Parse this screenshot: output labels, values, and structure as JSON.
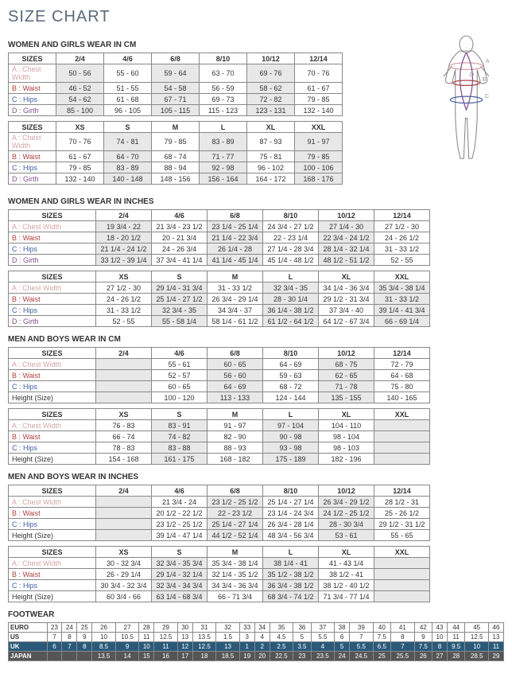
{
  "title": "SIZE CHART",
  "sections": {
    "wg_cm": {
      "heading": "WOMEN AND GIRLS WEAR IN CM",
      "t1": {
        "headers": [
          "SIZES",
          "2/4",
          "4/6",
          "6/8",
          "8/10",
          "10/12",
          "12/14"
        ],
        "rows": [
          {
            "label": "A : Chest Width",
            "cls": "a",
            "v": [
              "50 - 56",
              "55 - 60",
              "59 - 64",
              "63 - 70",
              "69 - 76",
              "70 - 76"
            ],
            "hi": [
              0,
              2,
              4
            ]
          },
          {
            "label": "B : Waist",
            "cls": "b",
            "v": [
              "46 - 52",
              "51 - 55",
              "54 - 58",
              "56 - 59",
              "58 - 62",
              "61 - 67"
            ],
            "hi": [
              0,
              2,
              4
            ]
          },
          {
            "label": "C : Hips",
            "cls": "c",
            "v": [
              "54 - 62",
              "61 - 68",
              "67 - 71",
              "69 - 73",
              "72 - 82",
              "79 - 85"
            ],
            "hi": [
              0,
              2,
              4
            ]
          },
          {
            "label": "D : Girth",
            "cls": "d",
            "v": [
              "85 - 100",
              "96 - 105",
              "105 - 115",
              "115 - 123",
              "123 - 131",
              "132 - 140"
            ],
            "hi": [
              0,
              2,
              4
            ]
          }
        ]
      },
      "t2": {
        "headers": [
          "SIZES",
          "XS",
          "S",
          "M",
          "L",
          "XL",
          "XXL"
        ],
        "rows": [
          {
            "label": "A : Chest Width",
            "cls": "a",
            "v": [
              "70 - 76",
              "74 - 81",
              "79 - 85",
              "83 - 89",
              "87 - 93",
              "91 - 97"
            ],
            "hi": [
              1,
              3,
              5
            ]
          },
          {
            "label": "B : Waist",
            "cls": "b",
            "v": [
              "61 - 67",
              "64 - 70",
              "68 - 74",
              "71 - 77",
              "75 - 81",
              "79 - 85"
            ],
            "hi": [
              1,
              3,
              5
            ]
          },
          {
            "label": "C : Hips",
            "cls": "c",
            "v": [
              "79 - 85",
              "83 - 89",
              "88 - 94",
              "92 - 98",
              "96 - 102",
              "100 - 106"
            ],
            "hi": [
              1,
              3,
              5
            ]
          },
          {
            "label": "D : Girth",
            "cls": "d",
            "v": [
              "132 - 140",
              "140 - 148",
              "148 - 156",
              "156 - 164",
              "164 - 172",
              "168 - 176"
            ],
            "hi": [
              1,
              3,
              5
            ]
          }
        ]
      }
    },
    "wg_in": {
      "heading": "WOMEN AND GIRLS WEAR IN INCHES",
      "t1": {
        "headers": [
          "SIZES",
          "2/4",
          "4/6",
          "6/8",
          "8/10",
          "10/12",
          "12/14"
        ],
        "rows": [
          {
            "label": "A : Chest Width",
            "cls": "a",
            "v": [
              "19 3/4 - 22",
              "21 3/4 - 23 1/2",
              "23 1/4 - 25 1/4",
              "24 3/4 - 27 1/2",
              "27 1/4 - 30",
              "27 1/2 - 30"
            ],
            "hi": [
              0,
              2,
              4
            ]
          },
          {
            "label": "B : Waist",
            "cls": "b",
            "v": [
              "18 - 20 1/2",
              "20 - 21 3/4",
              "21 1/4 - 22 3/4",
              "22 - 23 1/4",
              "22 3/4 - 24 1/2",
              "24 - 26 1/2"
            ],
            "hi": [
              0,
              2,
              4
            ]
          },
          {
            "label": "C : Hips",
            "cls": "c",
            "v": [
              "21 1/4 - 24 1/2",
              "24 - 26 3/4",
              "26 1/4 - 28",
              "27 1/4 - 28 3/4",
              "28 1/4 - 32 1/4",
              "31 - 33 1/2"
            ],
            "hi": [
              0,
              2,
              4
            ]
          },
          {
            "label": "D : Girth",
            "cls": "d",
            "v": [
              "33 1/2 - 39 1/4",
              "37 3/4 - 41 1/4",
              "41 1/4 - 45 1/4",
              "45 1/4 - 48 1/2",
              "48 1/2 - 51 1/2",
              "52 - 55"
            ],
            "hi": [
              0,
              2,
              4
            ]
          }
        ]
      },
      "t2": {
        "headers": [
          "SIZES",
          "XS",
          "S",
          "M",
          "L",
          "XL",
          "XXL"
        ],
        "rows": [
          {
            "label": "A : Chest Width",
            "cls": "a",
            "v": [
              "27 1/2 - 30",
              "29 1/4 - 31 3/4",
              "31 - 33 1/2",
              "32 3/4 - 35",
              "34 1/4 - 36 3/4",
              "35 3/4 - 38 1/4"
            ],
            "hi": [
              1,
              3,
              5
            ]
          },
          {
            "label": "B : Waist",
            "cls": "b",
            "v": [
              "24 - 26 1/2",
              "25 1/4 - 27 1/2",
              "26 3/4 - 29 1/4",
              "28 - 30 1/4",
              "29 1/2 - 31 3/4",
              "31 - 33 1/2"
            ],
            "hi": [
              1,
              3,
              5
            ]
          },
          {
            "label": "C : Hips",
            "cls": "c",
            "v": [
              "31 - 33 1/2",
              "32 3/4 - 35",
              "34 3/4 - 37",
              "36 1/4 - 38 1/2",
              "37 3/4 - 40",
              "39 1/4 - 41 3/4"
            ],
            "hi": [
              1,
              3,
              5
            ]
          },
          {
            "label": "D : Girth",
            "cls": "d",
            "v": [
              "52 - 55",
              "55 - 58 1/4",
              "58 1/4 - 61 1/2",
              "61 1/2 - 64 1/2",
              "64 1/2 - 67 3/4",
              "66 - 69 1/4"
            ],
            "hi": [
              1,
              3,
              5
            ]
          }
        ]
      }
    },
    "mb_cm": {
      "heading": "MEN AND BOYS WEAR IN CM",
      "t1": {
        "headers": [
          "SIZES",
          "2/4",
          "4/6",
          "6/8",
          "8/10",
          "10/12",
          "12/14"
        ],
        "rows": [
          {
            "label": "A : Chest Width",
            "cls": "a",
            "v": [
              "",
              "55 - 61",
              "60 - 65",
              "64 - 69",
              "68 - 75",
              "72 - 79"
            ],
            "hi": [
              0,
              2,
              4
            ]
          },
          {
            "label": "B : Waist",
            "cls": "b",
            "v": [
              "",
              "52 - 57",
              "56 - 60",
              "59 - 63",
              "62 - 65",
              "64 - 68"
            ],
            "hi": [
              0,
              2,
              4
            ]
          },
          {
            "label": "C : Hips",
            "cls": "c",
            "v": [
              "",
              "60 - 65",
              "64 - 69",
              "68 - 72",
              "71 - 78",
              "75 - 80"
            ],
            "hi": [
              0,
              2,
              4
            ]
          },
          {
            "label": "Height (Size)",
            "cls": "",
            "v": [
              "",
              "100 - 120",
              "113 - 133",
              "124 - 144",
              "135 - 155",
              "140 - 165"
            ],
            "hi": [
              0,
              2,
              4
            ]
          }
        ]
      },
      "t2": {
        "headers": [
          "SIZES",
          "XS",
          "S",
          "M",
          "L",
          "XL",
          "XXL"
        ],
        "rows": [
          {
            "label": "A : Chest Width",
            "cls": "a",
            "v": [
              "76 - 83",
              "83 - 91",
              "91 - 97",
              "97 - 104",
              "104 - 110",
              ""
            ],
            "hi": [
              1,
              3,
              5
            ]
          },
          {
            "label": "B : Waist",
            "cls": "b",
            "v": [
              "66 - 74",
              "74 - 82",
              "82 - 90",
              "90 - 98",
              "98 - 104",
              ""
            ],
            "hi": [
              1,
              3,
              5
            ]
          },
          {
            "label": "C : Hips",
            "cls": "c",
            "v": [
              "78 - 83",
              "83 - 88",
              "88 - 93",
              "93 - 98",
              "98 - 103",
              ""
            ],
            "hi": [
              1,
              3,
              5
            ]
          },
          {
            "label": "Height (Size)",
            "cls": "",
            "v": [
              "154 - 168",
              "161 - 175",
              "168 - 182",
              "175 - 189",
              "182 - 196",
              ""
            ],
            "hi": [
              1,
              3,
              5
            ]
          }
        ]
      }
    },
    "mb_in": {
      "heading": "MEN AND BOYS WEAR IN INCHES",
      "t1": {
        "headers": [
          "SIZES",
          "2/4",
          "4/6",
          "6/8",
          "8/10",
          "10/12",
          "12/14"
        ],
        "rows": [
          {
            "label": "A : Chest Width",
            "cls": "a",
            "v": [
              "",
              "21 3/4 - 24",
              "23 1/2 - 25 1/2",
              "25 1/4 - 27 1/4",
              "26 3/4 - 29 1/2",
              "28 1/2 - 31"
            ],
            "hi": [
              0,
              2,
              4
            ]
          },
          {
            "label": "B : Waist",
            "cls": "b",
            "v": [
              "",
              "20 1/2 - 22 1/2",
              "22 - 23 1/2",
              "23 1/4 - 24 3/4",
              "24 1/2 - 25 1/2",
              "25 - 26 1/2"
            ],
            "hi": [
              0,
              2,
              4
            ]
          },
          {
            "label": "C : Hips",
            "cls": "c",
            "v": [
              "",
              "23 1/2 - 25 1/2",
              "25 1/4 - 27 1/4",
              "26 3/4 - 28 1/4",
              "28 - 30 3/4",
              "29 1/2 - 31 1/2"
            ],
            "hi": [
              0,
              2,
              4
            ]
          },
          {
            "label": "Height (Size)",
            "cls": "",
            "v": [
              "",
              "39 1/4 - 47 1/4",
              "44 1/2 - 52 1/4",
              "48 3/4 - 56 3/4",
              "53 - 61",
              "55 - 65"
            ],
            "hi": [
              0,
              2,
              4
            ]
          }
        ]
      },
      "t2": {
        "headers": [
          "SIZES",
          "XS",
          "S",
          "M",
          "L",
          "XL",
          "XXL"
        ],
        "rows": [
          {
            "label": "A : Chest Width",
            "cls": "a",
            "v": [
              "30 - 32 3/4",
              "32 3/4 - 35 3/4",
              "35 3/4 - 38 1/4",
              "38 1/4 - 41",
              "41 - 43 1/4",
              ""
            ],
            "hi": [
              1,
              3,
              5
            ]
          },
          {
            "label": "B : Waist",
            "cls": "b",
            "v": [
              "26 - 29 1/4",
              "29 1/4 - 32 1/4",
              "32 1/4 - 35 1/2",
              "35 1/2 - 38 1/2",
              "38 1/2 - 41",
              ""
            ],
            "hi": [
              1,
              3,
              5
            ]
          },
          {
            "label": "C : Hips",
            "cls": "c",
            "v": [
              "30 3/4 - 32 3/4",
              "32 3/4 - 34 3/4",
              "34 3/4 - 36 3/4",
              "36 3/4 - 38 1/2",
              "38 1/2 - 40 1/2",
              ""
            ],
            "hi": [
              1,
              3,
              5
            ]
          },
          {
            "label": "Height (Size)",
            "cls": "",
            "v": [
              "60 3/4 - 66",
              "63 1/4 - 68 3/4",
              "66 - 71 3/4",
              "68 3/4 - 74 1/2",
              "71 3/4 - 77 1/4",
              ""
            ],
            "hi": [
              1,
              3,
              5
            ]
          }
        ]
      }
    }
  },
  "footwear": {
    "heading": "FOOTWEAR",
    "rows": [
      {
        "label": "EURO",
        "cls": "euro",
        "v": [
          "23",
          "24",
          "25",
          "26",
          "27",
          "28",
          "29",
          "30",
          "31",
          "32",
          "33",
          "34",
          "35",
          "36",
          "37",
          "38",
          "39",
          "40",
          "41",
          "42",
          "43",
          "44",
          "45",
          "46"
        ]
      },
      {
        "label": "US",
        "cls": "us",
        "v": [
          "7",
          "8",
          "9",
          "10",
          "10.5",
          "11",
          "12.5",
          "13",
          "13.5",
          "1.5",
          "3",
          "4",
          "4.5",
          "5",
          "5.5",
          "6",
          "7",
          "7.5",
          "8",
          "9",
          "10",
          "11",
          "12.5",
          "13"
        ]
      },
      {
        "label": "UK",
        "cls": "uk",
        "v": [
          "6",
          "7",
          "8",
          "8.5",
          "9",
          "10",
          "11",
          "12",
          "12.5",
          "13",
          "1",
          "2",
          "2.5",
          "3.5",
          "4",
          "5",
          "5.5",
          "6.5",
          "7",
          "7.5",
          "8",
          "9.5",
          "10",
          "11"
        ]
      },
      {
        "label": "JAPAN",
        "cls": "jp",
        "v": [
          "",
          "",
          "",
          "13.5",
          "14",
          "15",
          "16",
          "17",
          "18",
          "18.5",
          "19",
          "20",
          "22.5",
          "23",
          "23.5",
          "24",
          "24.5",
          "25",
          "25.5",
          "26",
          "27",
          "28",
          "28.5",
          "29"
        ]
      }
    ]
  }
}
